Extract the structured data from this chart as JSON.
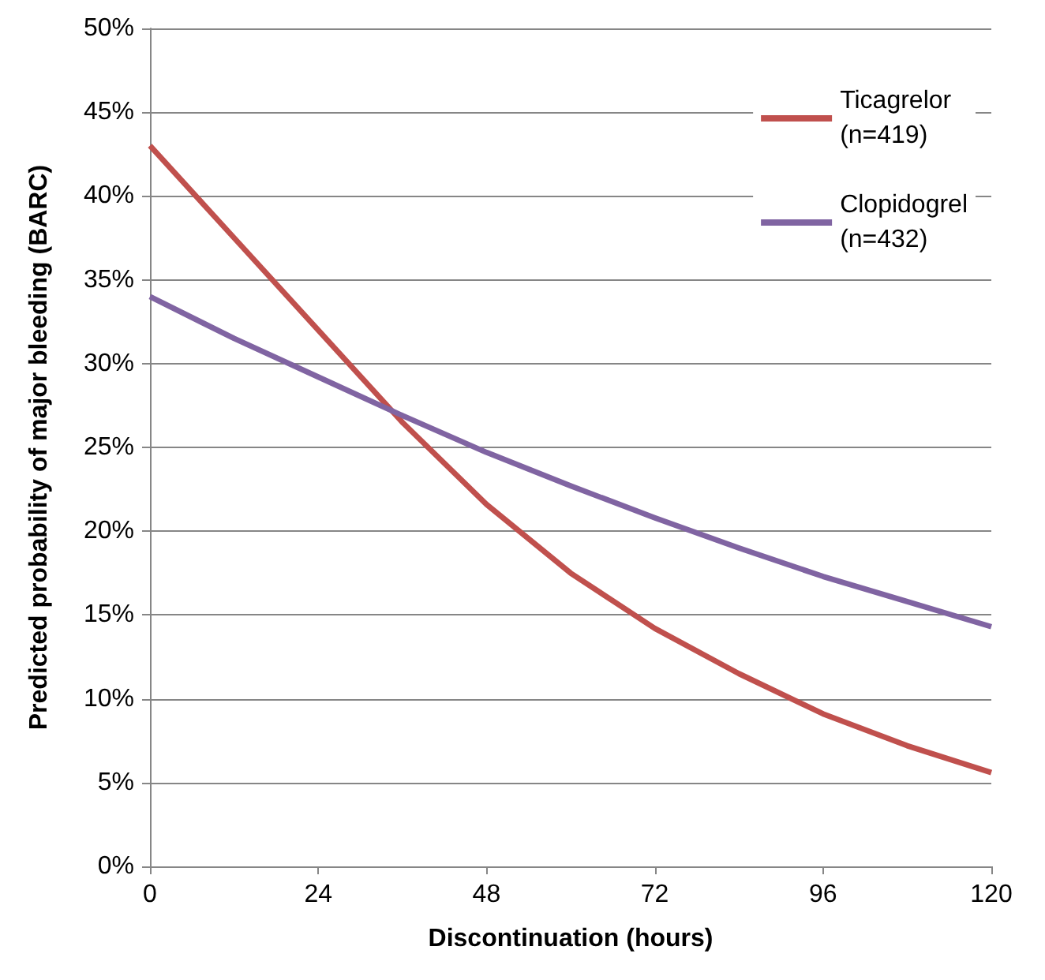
{
  "chart_data": {
    "type": "line",
    "xlabel": "Discontinuation (hours)",
    "ylabel": "Predicted probability of major bleeding (BARC)",
    "x": [
      0,
      12,
      24,
      36,
      48,
      60,
      72,
      84,
      96,
      108,
      120
    ],
    "series": [
      {
        "name": "Ticagrelor\n(n=419)",
        "color": "#c0504d",
        "values": [
          43,
          37.5,
          32,
          26.5,
          21.6,
          17.5,
          14.2,
          11.5,
          9.1,
          7.2,
          5.6
        ]
      },
      {
        "name": "Clopidogrel\n(n=432)",
        "color": "#8064a2",
        "values": [
          34,
          31.5,
          29.2,
          26.9,
          24.7,
          22.7,
          20.8,
          19,
          17.3,
          15.8,
          14.3
        ]
      }
    ],
    "xlim": [
      0,
      120
    ],
    "xticks": [
      0,
      24,
      48,
      72,
      96,
      120
    ],
    "ylim": [
      0,
      50
    ],
    "yticks": [
      {
        "value": 0,
        "label": "0%"
      },
      {
        "value": 5,
        "label": "5%"
      },
      {
        "value": 10,
        "label": "10%"
      },
      {
        "value": 15,
        "label": "15%"
      },
      {
        "value": 20,
        "label": "20%"
      },
      {
        "value": 25,
        "label": "25%"
      },
      {
        "value": 30,
        "label": "30%"
      },
      {
        "value": 35,
        "label": "35%"
      },
      {
        "value": 40,
        "label": "40%"
      },
      {
        "value": 45,
        "label": "45%"
      },
      {
        "value": 50,
        "label": "50%"
      }
    ],
    "grid": "y",
    "legend": "top right",
    "marker": "none",
    "line_style": "solid"
  }
}
